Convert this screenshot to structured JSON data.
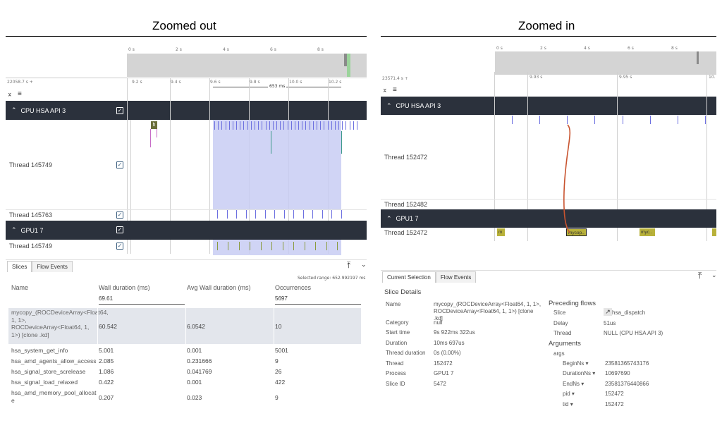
{
  "left": {
    "heading": "Zoomed out",
    "overview_ticks": [
      "0 s",
      "2 s",
      "4 s",
      "6 s",
      "8 s"
    ],
    "time_origin": "22058.7 s +",
    "timeline_ticks": [
      "9.2 s",
      "9.4 s",
      "9.6 s",
      "9.8 s",
      "10.0 s",
      "10.2 s"
    ],
    "span_label": "653 ms",
    "groups": [
      {
        "title": "CPU HSA API 3"
      },
      {
        "title": "GPU1 7"
      }
    ],
    "tracks": [
      "Thread 145749",
      "Thread 145763",
      "Thread 145749"
    ],
    "slice_label": "h",
    "tabs": [
      "Slices",
      "Flow Events"
    ],
    "selected_range": "Selected range: 652.992197 ms",
    "table": {
      "headers": [
        "Name",
        "Wall duration (ms)",
        "Avg Wall duration (ms)",
        "Occurrences"
      ],
      "totals": [
        "",
        "69.61",
        "",
        "5697"
      ],
      "rows": [
        [
          "mycopy_(ROCDeviceArray<Float64, 1, 1>, ROCDeviceArray<Float64, 1, 1>) [clone .kd]",
          "60.542",
          "6.0542",
          "10"
        ],
        [
          "hsa_system_get_info",
          "5.001",
          "0.001",
          "5001"
        ],
        [
          "hsa_amd_agents_allow_access",
          "2.085",
          "0.231666",
          "9"
        ],
        [
          "hsa_signal_store_screlease",
          "1.086",
          "0.041769",
          "26"
        ],
        [
          "hsa_signal_load_relaxed",
          "0.422",
          "0.001",
          "422"
        ],
        [
          "hsa_amd_memory_pool_allocate",
          "0.207",
          "0.023",
          "9"
        ]
      ]
    }
  },
  "right": {
    "heading": "Zoomed in",
    "overview_ticks": [
      "0 s",
      "2 s",
      "4 s",
      "6 s",
      "8 s"
    ],
    "time_origin": "23571.4 s +",
    "timeline_ticks": [
      "9.93 s",
      "9.95 s",
      "10."
    ],
    "groups": [
      {
        "title": "CPU HSA API 3"
      },
      {
        "title": "GPU1 7"
      }
    ],
    "tracks": [
      "Thread 152472",
      "Thread 152482",
      "Thread 152472"
    ],
    "gpu_slices": [
      "m",
      "mycop..",
      "myc..",
      ""
    ],
    "tabs": [
      "Current Selection",
      "Flow Events"
    ],
    "details_title": "Slice Details",
    "details": [
      {
        "k": "Name",
        "v": "mycopy_(ROCDeviceArray<Float64, 1, 1>, ROCDeviceArray<Float64, 1, 1>) [clone .kd]"
      },
      {
        "k": "Category",
        "v": "null"
      },
      {
        "k": "Start time",
        "v": "9s 922ms 322us"
      },
      {
        "k": "Duration",
        "v": "10ms 697us"
      },
      {
        "k": "Thread duration",
        "v": "0s (0.00%)"
      },
      {
        "k": "Thread",
        "v": "152472"
      },
      {
        "k": "Process",
        "v": "GPU1 7"
      },
      {
        "k": "Slice ID",
        "v": "5472"
      }
    ],
    "preceding_title": "Preceding flows",
    "preceding": [
      {
        "k": "Slice",
        "v": "hsa_dispatch"
      },
      {
        "k": "Delay",
        "v": "51us"
      },
      {
        "k": "Thread",
        "v": "NULL (CPU HSA API 3)"
      }
    ],
    "arguments_title": "Arguments",
    "args_label": "args",
    "args": [
      {
        "k": "BeginNs",
        "v": "23581365743176"
      },
      {
        "k": "DurationNs",
        "v": "10697690"
      },
      {
        "k": "EndNs",
        "v": "23581376440866"
      },
      {
        "k": "pid",
        "v": "152472"
      },
      {
        "k": "tid",
        "v": "152472"
      }
    ]
  },
  "colors": {
    "dark_header": "#2b313c",
    "selection": "#c8cdf3",
    "gpu_slice": "#b8b13a",
    "flow_arrow": "#c8532f"
  }
}
